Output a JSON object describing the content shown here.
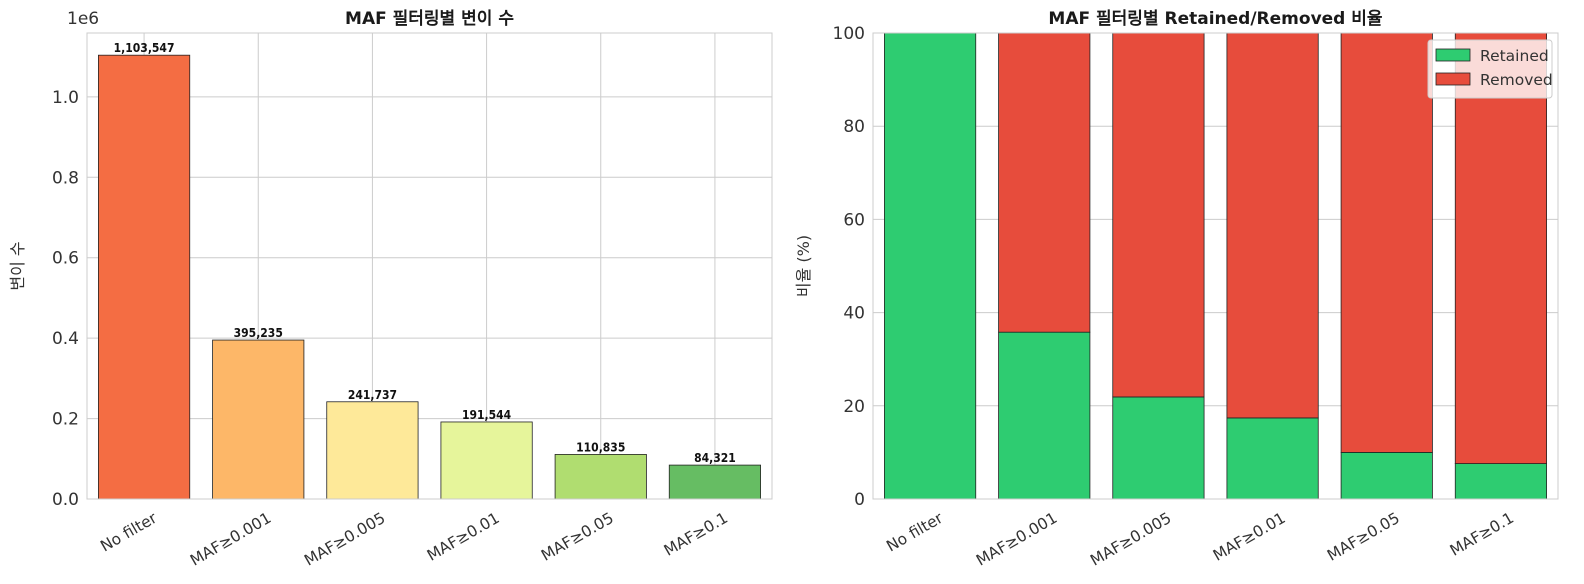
{
  "chart_data": [
    {
      "type": "bar",
      "title": "MAF 필터링별 변이 수",
      "xlabel": "",
      "ylabel": "변이 수",
      "y_scale_label": "1e6",
      "categories": [
        "No filter",
        "MAF≥0.001",
        "MAF≥0.005",
        "MAF≥0.01",
        "MAF≥0.05",
        "MAF≥0.1"
      ],
      "values": [
        1103547,
        395235,
        241737,
        191544,
        110835,
        84321
      ],
      "value_labels": [
        "1,103,547",
        "395,235",
        "241,737",
        "191,544",
        "110,835",
        "84,321"
      ],
      "colors": [
        "#f46d43",
        "#fdb768",
        "#fee999",
        "#e6f59b",
        "#b0dd70",
        "#66bd63"
      ],
      "ylim": [
        0,
        1158724
      ],
      "yticks": [
        0,
        200000,
        400000,
        600000,
        800000,
        1000000
      ],
      "ytick_labels": [
        "0.0",
        "0.2",
        "0.4",
        "0.6",
        "0.8",
        "1.0"
      ],
      "grid": true
    },
    {
      "type": "bar",
      "stacked": true,
      "title": "MAF 필터링별 Retained/Removed 비율",
      "xlabel": "",
      "ylabel": "비율 (%)",
      "categories": [
        "No filter",
        "MAF≥0.001",
        "MAF≥0.005",
        "MAF≥0.01",
        "MAF≥0.05",
        "MAF≥0.1"
      ],
      "series": [
        {
          "name": "Retained",
          "color": "#2ecc71",
          "values": [
            100.0,
            35.8,
            21.9,
            17.4,
            10.0,
            7.6
          ]
        },
        {
          "name": "Removed",
          "color": "#e74c3c",
          "values": [
            0.0,
            64.2,
            78.1,
            82.6,
            90.0,
            92.4
          ]
        }
      ],
      "ylim": [
        0,
        100
      ],
      "yticks": [
        0,
        20,
        40,
        60,
        80,
        100
      ],
      "ytick_labels": [
        "0",
        "20",
        "40",
        "60",
        "80",
        "100"
      ],
      "legend_position": "top-right",
      "grid": true
    }
  ]
}
